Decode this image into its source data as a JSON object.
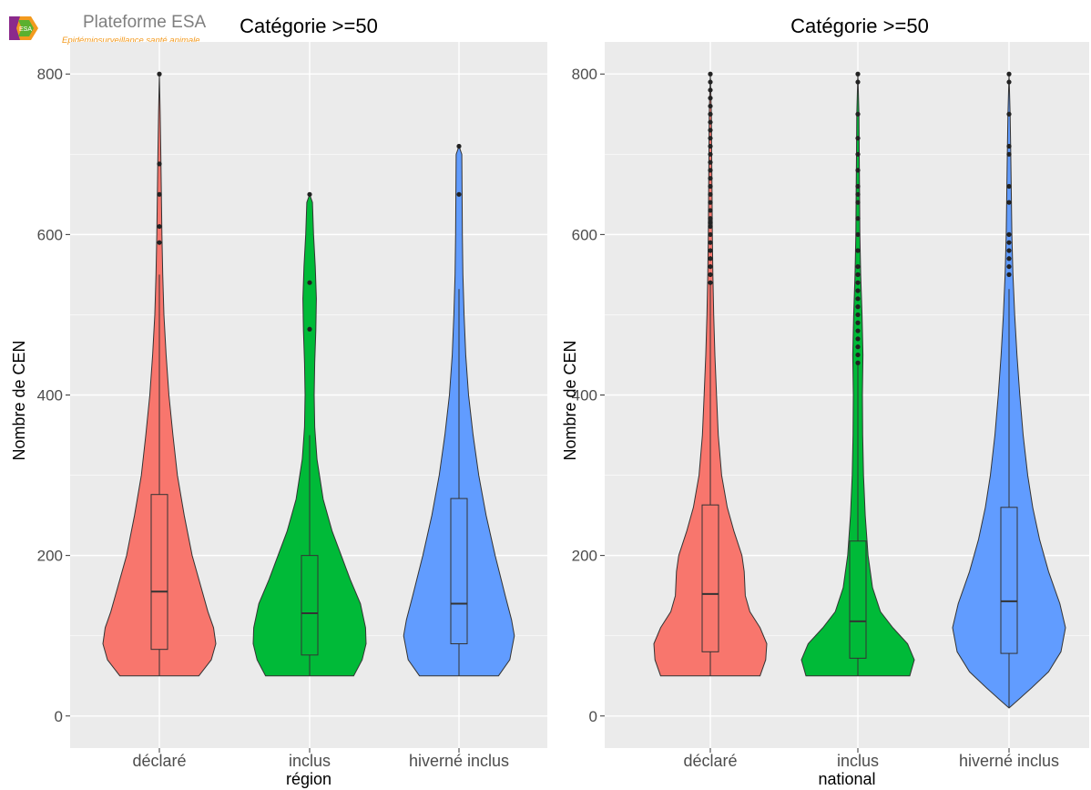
{
  "logo": {
    "title": "Plateforme ESA",
    "subtitle": "Epidémiosurveillance santé animale",
    "mark_text": "ESA"
  },
  "colors": {
    "panel_bg": "#ebebeb",
    "grid": "#ffffff",
    "déclaré": "#f8766d",
    "inclus": "#00ba38",
    "hiverné inclus": "#619cff",
    "outline": "#333333",
    "text": "#4d4d4d"
  },
  "chart_data": [
    {
      "type": "violin",
      "title": "Catégorie >=50",
      "xlabel": "région",
      "ylabel": "Nombre de CEN",
      "categories": [
        "déclaré",
        "inclus",
        "hiverné inclus"
      ],
      "ylim": [
        -40,
        840
      ],
      "yticks": [
        0,
        200,
        400,
        600,
        800
      ],
      "grid": true,
      "series": [
        {
          "name": "déclaré",
          "box": {
            "q1": 83,
            "median": 155,
            "q3": 276,
            "whisker_low": 50,
            "whisker_high": 550
          },
          "outliers": [
            800,
            688,
            650,
            610,
            590
          ],
          "density": [
            [
              50,
              0.7
            ],
            [
              70,
              0.92
            ],
            [
              90,
              1.0
            ],
            [
              110,
              0.96
            ],
            [
              130,
              0.86
            ],
            [
              160,
              0.74
            ],
            [
              200,
              0.58
            ],
            [
              250,
              0.44
            ],
            [
              300,
              0.32
            ],
            [
              350,
              0.24
            ],
            [
              400,
              0.17
            ],
            [
              450,
              0.12
            ],
            [
              500,
              0.08
            ],
            [
              550,
              0.06
            ],
            [
              600,
              0.045
            ],
            [
              650,
              0.035
            ],
            [
              700,
              0.025
            ],
            [
              750,
              0.015
            ],
            [
              800,
              0.0
            ]
          ]
        },
        {
          "name": "inclus",
          "box": {
            "q1": 76,
            "median": 128,
            "q3": 200,
            "whisker_low": 50,
            "whisker_high": 350
          },
          "outliers": [
            650,
            540,
            482
          ],
          "density": [
            [
              50,
              0.78
            ],
            [
              70,
              0.93
            ],
            [
              90,
              1.0
            ],
            [
              110,
              0.99
            ],
            [
              140,
              0.9
            ],
            [
              170,
              0.72
            ],
            [
              200,
              0.56
            ],
            [
              230,
              0.4
            ],
            [
              270,
              0.24
            ],
            [
              320,
              0.13
            ],
            [
              360,
              0.09
            ],
            [
              400,
              0.08
            ],
            [
              440,
              0.09
            ],
            [
              480,
              0.11
            ],
            [
              520,
              0.12
            ],
            [
              560,
              0.1
            ],
            [
              600,
              0.07
            ],
            [
              640,
              0.05
            ],
            [
              650,
              0.0
            ]
          ]
        },
        {
          "name": "hiverné inclus",
          "box": {
            "q1": 90,
            "median": 140,
            "q3": 271,
            "whisker_low": 50,
            "whisker_high": 532
          },
          "outliers": [
            710,
            650
          ],
          "density": [
            [
              50,
              0.7
            ],
            [
              70,
              0.9
            ],
            [
              100,
              0.98
            ],
            [
              120,
              0.93
            ],
            [
              150,
              0.82
            ],
            [
              200,
              0.64
            ],
            [
              250,
              0.48
            ],
            [
              300,
              0.35
            ],
            [
              350,
              0.25
            ],
            [
              400,
              0.17
            ],
            [
              450,
              0.12
            ],
            [
              500,
              0.09
            ],
            [
              550,
              0.07
            ],
            [
              600,
              0.06
            ],
            [
              650,
              0.055
            ],
            [
              700,
              0.05
            ],
            [
              710,
              0.0
            ]
          ]
        }
      ]
    },
    {
      "type": "violin",
      "title": "Catégorie >=50",
      "xlabel": "national",
      "ylabel": "Nombre de CEN",
      "categories": [
        "déclaré",
        "inclus",
        "hiverné inclus"
      ],
      "ylim": [
        -40,
        840
      ],
      "yticks": [
        0,
        200,
        400,
        600,
        800
      ],
      "grid": true,
      "series": [
        {
          "name": "déclaré",
          "box": {
            "q1": 80,
            "median": 152,
            "q3": 263,
            "whisker_low": 50,
            "whisker_high": 540
          },
          "outliers": [
            540,
            550,
            560,
            570,
            580,
            590,
            600,
            610,
            615,
            620,
            630,
            640,
            650,
            660,
            670,
            680,
            690,
            700,
            710,
            720,
            730,
            740,
            750,
            760,
            770,
            780,
            790,
            800
          ],
          "density": [
            [
              50,
              0.88
            ],
            [
              70,
              0.98
            ],
            [
              90,
              1.0
            ],
            [
              110,
              0.88
            ],
            [
              130,
              0.7
            ],
            [
              150,
              0.62
            ],
            [
              180,
              0.6
            ],
            [
              200,
              0.56
            ],
            [
              230,
              0.42
            ],
            [
              260,
              0.3
            ],
            [
              300,
              0.2
            ],
            [
              350,
              0.14
            ],
            [
              400,
              0.11
            ],
            [
              450,
              0.08
            ],
            [
              500,
              0.06
            ],
            [
              550,
              0.045
            ],
            [
              600,
              0.035
            ],
            [
              650,
              0.03
            ],
            [
              700,
              0.025
            ],
            [
              750,
              0.02
            ],
            [
              800,
              0.0
            ]
          ]
        },
        {
          "name": "inclus",
          "box": {
            "q1": 72,
            "median": 118,
            "q3": 218,
            "whisker_low": 50,
            "whisker_high": 440
          },
          "outliers": [
            440,
            450,
            460,
            470,
            480,
            490,
            500,
            510,
            520,
            530,
            540,
            550,
            560,
            580,
            600,
            620,
            640,
            650,
            660,
            680,
            700,
            720,
            750,
            790,
            800
          ],
          "density": [
            [
              50,
              0.92
            ],
            [
              70,
              1.0
            ],
            [
              90,
              0.88
            ],
            [
              110,
              0.62
            ],
            [
              130,
              0.4
            ],
            [
              160,
              0.26
            ],
            [
              200,
              0.18
            ],
            [
              250,
              0.13
            ],
            [
              300,
              0.1
            ],
            [
              350,
              0.085
            ],
            [
              400,
              0.08
            ],
            [
              450,
              0.09
            ],
            [
              500,
              0.075
            ],
            [
              550,
              0.05
            ],
            [
              600,
              0.035
            ],
            [
              650,
              0.03
            ],
            [
              700,
              0.025
            ],
            [
              750,
              0.02
            ],
            [
              800,
              0.0
            ]
          ]
        },
        {
          "name": "hiverné inclus",
          "box": {
            "q1": 78,
            "median": 143,
            "q3": 260,
            "whisker_low": 10,
            "whisker_high": 532
          },
          "outliers": [
            550,
            560,
            570,
            580,
            590,
            600,
            640,
            660,
            700,
            710,
            750,
            790,
            800
          ],
          "density": [
            [
              10,
              0.0
            ],
            [
              20,
              0.16
            ],
            [
              35,
              0.4
            ],
            [
              55,
              0.7
            ],
            [
              80,
              0.92
            ],
            [
              110,
              1.0
            ],
            [
              140,
              0.9
            ],
            [
              180,
              0.7
            ],
            [
              220,
              0.54
            ],
            [
              260,
              0.42
            ],
            [
              300,
              0.33
            ],
            [
              350,
              0.25
            ],
            [
              400,
              0.19
            ],
            [
              450,
              0.14
            ],
            [
              500,
              0.1
            ],
            [
              550,
              0.07
            ],
            [
              600,
              0.05
            ],
            [
              650,
              0.04
            ],
            [
              700,
              0.03
            ],
            [
              750,
              0.02
            ],
            [
              800,
              0.0
            ]
          ]
        }
      ]
    }
  ]
}
